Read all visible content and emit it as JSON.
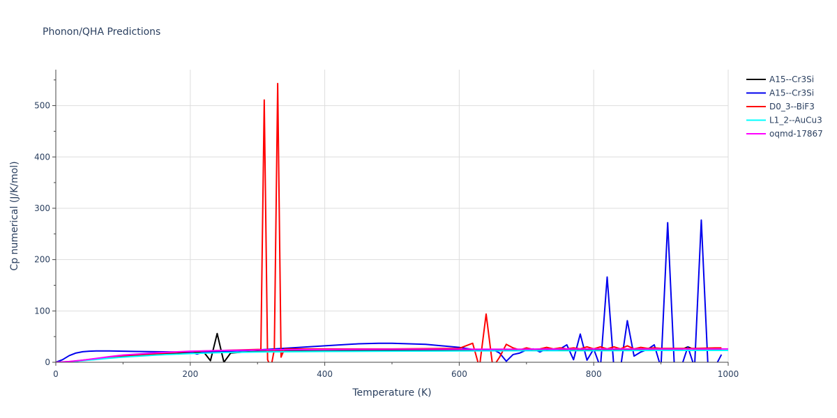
{
  "chart_data": {
    "type": "line",
    "title": "Phonon/QHA Predictions",
    "xlabel": "Temperature (K)",
    "ylabel": "Cp numerical (J/K/mol)",
    "xlim": [
      0,
      1000
    ],
    "ylim": [
      0,
      570
    ],
    "xticks": [
      0,
      200,
      400,
      600,
      800,
      1000
    ],
    "yticks": [
      0,
      100,
      200,
      300,
      400,
      500
    ],
    "grid": true,
    "legend_position": "top-right",
    "series": [
      {
        "name": "A15--Cr3Si",
        "color": "#000000",
        "x": [
          0,
          10,
          20,
          30,
          40,
          50,
          60,
          80,
          100,
          120,
          140,
          160,
          180,
          200,
          210,
          220,
          230,
          240,
          250,
          260,
          280,
          300,
          350,
          400,
          450,
          500,
          550,
          600,
          650,
          700,
          750,
          800,
          850,
          900,
          930,
          940,
          950,
          990
        ],
        "y": [
          0,
          0.5,
          1,
          2,
          3.5,
          5,
          6.5,
          9,
          11.5,
          13.5,
          15.5,
          17,
          18,
          19,
          19.5,
          20,
          3,
          56,
          0,
          18,
          20,
          21,
          21.5,
          22,
          22.5,
          23,
          23,
          23.5,
          24,
          24,
          24,
          24,
          24.5,
          24.5,
          24.5,
          30,
          24.5,
          24.5
        ]
      },
      {
        "name": "A15--Cr3Si",
        "color": "#0000ee",
        "x": [
          0,
          10,
          20,
          30,
          40,
          50,
          60,
          80,
          100,
          120,
          150,
          180,
          200,
          210,
          220,
          250,
          300,
          350,
          400,
          450,
          480,
          500,
          550,
          600,
          620,
          650,
          660,
          670,
          680,
          690,
          700,
          710,
          720,
          730,
          740,
          750,
          760,
          770,
          780,
          790,
          800,
          810,
          820,
          830,
          840,
          850,
          860,
          870,
          880,
          890,
          900,
          910,
          920,
          930,
          940,
          950,
          960,
          970,
          980,
          990
        ],
        "y": [
          0,
          5,
          13,
          18,
          20.5,
          21.5,
          22,
          22,
          21.5,
          21,
          20.5,
          20,
          20,
          16,
          20,
          21,
          24,
          28,
          32,
          36,
          37,
          37,
          35,
          29,
          25,
          25,
          18,
          2,
          15,
          18,
          24,
          26,
          20,
          26,
          24,
          26,
          34,
          5,
          55,
          4,
          26,
          -10,
          166,
          -10,
          -10,
          81,
          12,
          20,
          25,
          34,
          -10,
          272,
          -10,
          -10,
          30,
          -10,
          277,
          -10,
          -10,
          15
        ]
      },
      {
        "name": "D0_3--BiF3",
        "color": "#ff0000",
        "x": [
          0,
          20,
          40,
          60,
          80,
          100,
          150,
          200,
          250,
          300,
          305,
          310,
          315,
          320,
          325,
          330,
          335,
          340,
          400,
          500,
          600,
          620,
          630,
          640,
          650,
          660,
          670,
          680,
          690,
          700,
          710,
          720,
          730,
          740,
          750,
          760,
          770,
          780,
          790,
          800,
          810,
          820,
          830,
          840,
          850,
          860,
          870,
          880,
          890,
          900,
          950,
          980,
          990
        ],
        "y": [
          0,
          1,
          4,
          7,
          10,
          13,
          17,
          21,
          23,
          25,
          25,
          511,
          5,
          -10,
          25,
          543,
          10,
          26,
          26,
          26,
          27,
          37,
          -10,
          94,
          -10,
          10,
          35,
          28,
          24,
          28,
          25,
          26,
          29,
          26,
          28,
          26,
          28,
          26,
          30,
          26,
          30,
          26,
          30,
          26,
          32,
          26,
          29,
          27,
          28,
          27,
          27,
          28,
          28
        ]
      },
      {
        "name": "L1_2--AuCu3",
        "color": "#00ffff",
        "x": [
          0,
          20,
          40,
          60,
          80,
          100,
          150,
          200,
          250,
          300,
          400,
          500,
          600,
          700,
          800,
          900,
          1000
        ],
        "y": [
          0,
          1,
          3,
          5.5,
          8,
          10,
          14,
          17,
          19,
          20,
          21,
          21.5,
          22,
          22.5,
          22.5,
          23,
          23
        ]
      },
      {
        "name": "oqmd-17867",
        "color": "#ff00ff",
        "x": [
          0,
          20,
          40,
          60,
          80,
          100,
          150,
          200,
          250,
          300,
          400,
          500,
          600,
          700,
          800,
          900,
          1000
        ],
        "y": [
          0,
          1.5,
          4,
          7.5,
          11,
          14,
          18.5,
          21.5,
          23,
          24,
          25,
          25.5,
          25.5,
          25.5,
          26,
          26,
          26
        ]
      }
    ]
  }
}
